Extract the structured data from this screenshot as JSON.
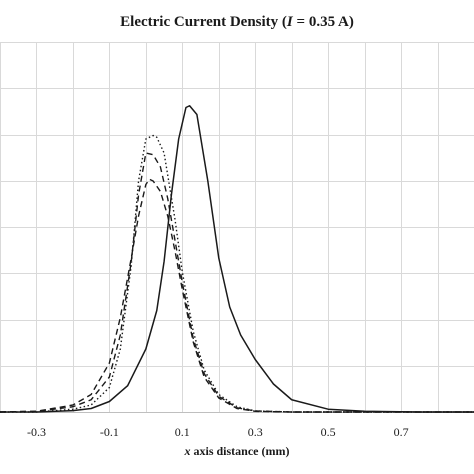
{
  "chart_data": {
    "type": "line",
    "title_prefix": "Electric Current Density (",
    "title_var": "I",
    "title_suffix": " = 0.35 A)",
    "xlabel_var": "x",
    "xlabel_rest": " axis distance (mm)",
    "ylabel": "",
    "xlim": [
      -0.4,
      0.9
    ],
    "ylim": [
      0,
      1.0
    ],
    "xticks": [
      -0.3,
      -0.1,
      0.1,
      0.3,
      0.5,
      0.7
    ],
    "xtick_labels": [
      "-0.3",
      "-0.1",
      "0.1",
      "0.3",
      "0.5",
      "0.7"
    ],
    "grid": true,
    "legend": "none",
    "series": [
      {
        "style": "solid",
        "color": "#1a1a1a",
        "x": [
          -0.4,
          -0.3,
          -0.2,
          -0.15,
          -0.1,
          -0.05,
          0.0,
          0.03,
          0.05,
          0.07,
          0.09,
          0.11,
          0.12,
          0.14,
          0.17,
          0.2,
          0.23,
          0.26,
          0.3,
          0.35,
          0.4,
          0.5,
          0.6,
          0.75,
          0.9
        ],
        "y": [
          0.0,
          0.0,
          0.004,
          0.01,
          0.03,
          0.075,
          0.18,
          0.29,
          0.43,
          0.62,
          0.78,
          0.87,
          0.875,
          0.85,
          0.66,
          0.44,
          0.3,
          0.22,
          0.15,
          0.08,
          0.035,
          0.008,
          0.002,
          0.0,
          0.0
        ]
      },
      {
        "style": "dotted",
        "color": "#1a1a1a",
        "x": [
          -0.4,
          -0.3,
          -0.2,
          -0.15,
          -0.1,
          -0.07,
          -0.04,
          -0.02,
          0.0,
          0.02,
          0.03,
          0.05,
          0.08,
          0.1,
          0.13,
          0.16,
          0.2,
          0.25,
          0.3,
          0.4,
          0.9
        ],
        "y": [
          0.0,
          0.0,
          0.008,
          0.02,
          0.07,
          0.18,
          0.42,
          0.66,
          0.78,
          0.79,
          0.785,
          0.74,
          0.55,
          0.4,
          0.23,
          0.12,
          0.05,
          0.015,
          0.003,
          0.0,
          0.0
        ]
      },
      {
        "style": "dashed",
        "color": "#1a1a1a",
        "x": [
          -0.4,
          -0.3,
          -0.2,
          -0.15,
          -0.1,
          -0.07,
          -0.04,
          -0.02,
          0.0,
          0.02,
          0.04,
          0.06,
          0.08,
          0.1,
          0.13,
          0.16,
          0.2,
          0.25,
          0.3,
          0.4,
          0.9
        ],
        "y": [
          0.0,
          0.002,
          0.015,
          0.035,
          0.1,
          0.22,
          0.43,
          0.62,
          0.74,
          0.735,
          0.7,
          0.61,
          0.49,
          0.37,
          0.21,
          0.11,
          0.045,
          0.012,
          0.003,
          0.0,
          0.0
        ]
      },
      {
        "style": "dashed",
        "color": "#1a1a1a",
        "x": [
          -0.4,
          -0.3,
          -0.2,
          -0.15,
          -0.1,
          -0.07,
          -0.04,
          -0.02,
          0.0,
          0.01,
          0.02,
          0.04,
          0.06,
          0.08,
          0.1,
          0.13,
          0.16,
          0.2,
          0.25,
          0.3,
          0.4,
          0.9
        ],
        "y": [
          0.0,
          0.002,
          0.02,
          0.05,
          0.14,
          0.27,
          0.44,
          0.56,
          0.65,
          0.665,
          0.66,
          0.63,
          0.56,
          0.46,
          0.35,
          0.2,
          0.1,
          0.04,
          0.01,
          0.002,
          0.0,
          0.0
        ]
      }
    ]
  }
}
